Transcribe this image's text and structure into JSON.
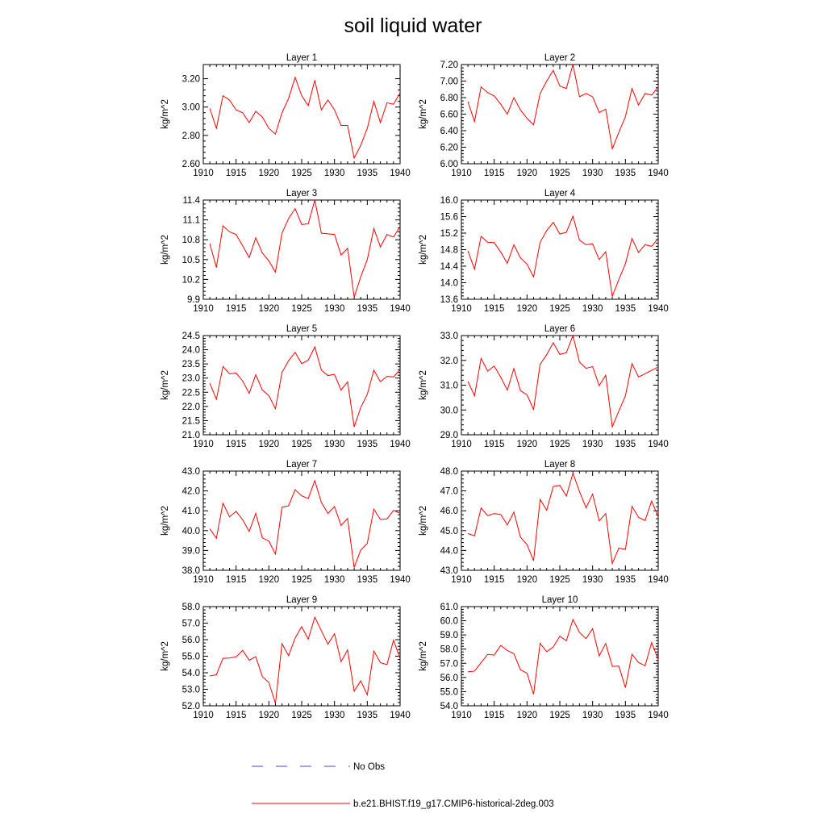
{
  "title": "soil liquid water",
  "legend": [
    {
      "label": "No Obs",
      "color": "#4444cc",
      "style": "dashed"
    },
    {
      "label": "b.e21.BHIST.f19_g17.CMIP6-historical-2deg.003",
      "color": "#ff0000",
      "style": "solid"
    }
  ],
  "chart_data": [
    {
      "type": "line",
      "title": "Layer 1",
      "ylabel": "kg/m^2",
      "xlim": [
        1910,
        1940
      ],
      "ylim": [
        2.6,
        3.3
      ],
      "xticks": [
        "1910",
        "1915",
        "1920",
        "1925",
        "1930",
        "1935",
        "1940"
      ],
      "yticks": [
        "2.60",
        "2.80",
        "3.00",
        "3.20"
      ],
      "ytick_values": [
        2.6,
        2.8,
        3.0,
        3.2
      ],
      "series": [
        {
          "color": "#ff0000",
          "x": [
            1911,
            1912,
            1913,
            1914,
            1915,
            1916,
            1917,
            1918,
            1919,
            1920,
            1921,
            1922,
            1923,
            1924,
            1925,
            1926,
            1927,
            1928,
            1929,
            1930,
            1931,
            1932,
            1933,
            1934,
            1935,
            1936,
            1937,
            1938,
            1939,
            1940
          ],
          "y": [
            2.99,
            2.85,
            3.08,
            3.05,
            2.98,
            2.96,
            2.89,
            2.97,
            2.93,
            2.85,
            2.81,
            2.96,
            3.06,
            3.21,
            3.08,
            3.01,
            3.19,
            2.98,
            3.05,
            2.98,
            2.87,
            2.87,
            2.64,
            2.73,
            2.85,
            3.04,
            2.89,
            3.03,
            3.02,
            3.1
          ]
        }
      ]
    },
    {
      "type": "line",
      "title": "Layer 2",
      "ylabel": "kg/m^2",
      "xlim": [
        1910,
        1940
      ],
      "ylim": [
        6.0,
        7.2
      ],
      "xticks": [
        "1910",
        "1915",
        "1920",
        "1925",
        "1930",
        "1935",
        "1940"
      ],
      "yticks": [
        "6.00",
        "6.20",
        "6.40",
        "6.60",
        "6.80",
        "7.00",
        "7.20"
      ],
      "ytick_values": [
        6.0,
        6.2,
        6.4,
        6.6,
        6.8,
        7.0,
        7.2
      ],
      "series": [
        {
          "color": "#ff0000",
          "x": [
            1911,
            1912,
            1913,
            1914,
            1915,
            1916,
            1917,
            1918,
            1919,
            1920,
            1921,
            1922,
            1923,
            1924,
            1925,
            1926,
            1927,
            1928,
            1929,
            1930,
            1931,
            1932,
            1933,
            1934,
            1935,
            1936,
            1937,
            1938,
            1939,
            1940
          ],
          "y": [
            6.75,
            6.51,
            6.93,
            6.86,
            6.82,
            6.72,
            6.6,
            6.8,
            6.65,
            6.55,
            6.47,
            6.85,
            7.0,
            7.13,
            6.94,
            6.91,
            7.2,
            6.81,
            6.85,
            6.81,
            6.62,
            6.66,
            6.18,
            6.38,
            6.57,
            6.91,
            6.71,
            6.85,
            6.83,
            6.93
          ]
        }
      ]
    },
    {
      "type": "line",
      "title": "Layer 3",
      "ylabel": "kg/m^2",
      "xlim": [
        1910,
        1940
      ],
      "ylim": [
        9.9,
        11.4
      ],
      "xticks": [
        "1910",
        "1915",
        "1920",
        "1925",
        "1930",
        "1935",
        "1940"
      ],
      "yticks": [
        "9.9",
        "10.2",
        "10.5",
        "10.8",
        "11.1",
        "11.4"
      ],
      "ytick_values": [
        9.9,
        10.2,
        10.5,
        10.8,
        11.1,
        11.4
      ],
      "series": [
        {
          "color": "#ff0000",
          "x": [
            1911,
            1912,
            1913,
            1914,
            1915,
            1916,
            1917,
            1918,
            1919,
            1920,
            1921,
            1922,
            1923,
            1924,
            1925,
            1926,
            1927,
            1928,
            1929,
            1930,
            1931,
            1932,
            1933,
            1934,
            1935,
            1936,
            1937,
            1938,
            1939,
            1940
          ],
          "y": [
            10.74,
            10.38,
            11.01,
            10.92,
            10.88,
            10.71,
            10.53,
            10.83,
            10.6,
            10.48,
            10.31,
            10.9,
            11.12,
            11.27,
            11.03,
            11.04,
            11.4,
            10.9,
            10.89,
            10.88,
            10.57,
            10.67,
            9.93,
            10.24,
            10.5,
            10.97,
            10.69,
            10.88,
            10.84,
            11.0
          ]
        }
      ]
    },
    {
      "type": "line",
      "title": "Layer 4",
      "ylabel": "kg/m^2",
      "xlim": [
        1910,
        1940
      ],
      "ylim": [
        13.6,
        16.0
      ],
      "xticks": [
        "1910",
        "1915",
        "1920",
        "1925",
        "1930",
        "1935",
        "1940"
      ],
      "yticks": [
        "13.6",
        "14.0",
        "14.4",
        "14.8",
        "15.2",
        "15.6",
        "16.0"
      ],
      "ytick_values": [
        13.6,
        14.0,
        14.4,
        14.8,
        15.2,
        15.6,
        16.0
      ],
      "series": [
        {
          "color": "#ff0000",
          "x": [
            1911,
            1912,
            1913,
            1914,
            1915,
            1916,
            1917,
            1918,
            1919,
            1920,
            1921,
            1922,
            1923,
            1924,
            1925,
            1926,
            1927,
            1928,
            1929,
            1930,
            1931,
            1932,
            1933,
            1934,
            1935,
            1936,
            1937,
            1938,
            1939,
            1940
          ],
          "y": [
            14.77,
            14.33,
            15.12,
            14.98,
            14.97,
            14.74,
            14.47,
            14.92,
            14.6,
            14.45,
            14.14,
            14.98,
            15.26,
            15.46,
            15.18,
            15.22,
            15.61,
            15.03,
            14.92,
            14.94,
            14.56,
            14.75,
            13.67,
            14.08,
            14.46,
            15.07,
            14.73,
            14.92,
            14.88,
            15.08
          ]
        }
      ]
    },
    {
      "type": "line",
      "title": "Layer 5",
      "ylabel": "kg/m^2",
      "xlim": [
        1910,
        1940
      ],
      "ylim": [
        21.0,
        24.5
      ],
      "xticks": [
        "1910",
        "1915",
        "1920",
        "1925",
        "1930",
        "1935",
        "1940"
      ],
      "yticks": [
        "21.0",
        "21.5",
        "22.0",
        "22.5",
        "23.0",
        "23.5",
        "24.0",
        "24.5"
      ],
      "ytick_values": [
        21.0,
        21.5,
        22.0,
        22.5,
        23.0,
        23.5,
        24.0,
        24.5
      ],
      "series": [
        {
          "color": "#ff0000",
          "x": [
            1911,
            1912,
            1913,
            1914,
            1915,
            1916,
            1917,
            1918,
            1919,
            1920,
            1921,
            1922,
            1923,
            1924,
            1925,
            1926,
            1927,
            1928,
            1929,
            1930,
            1931,
            1932,
            1933,
            1934,
            1935,
            1936,
            1937,
            1938,
            1939,
            1940
          ],
          "y": [
            22.82,
            22.25,
            23.41,
            23.15,
            23.18,
            22.9,
            22.46,
            23.12,
            22.58,
            22.38,
            21.92,
            23.2,
            23.61,
            23.91,
            23.51,
            23.63,
            24.1,
            23.28,
            23.09,
            23.13,
            22.58,
            22.87,
            21.28,
            21.96,
            22.43,
            23.28,
            22.87,
            23.06,
            23.04,
            23.3
          ]
        }
      ]
    },
    {
      "type": "line",
      "title": "Layer 6",
      "ylabel": "kg/m^2",
      "xlim": [
        1910,
        1940
      ],
      "ylim": [
        29.0,
        33.0
      ],
      "xticks": [
        "1910",
        "1915",
        "1920",
        "1925",
        "1930",
        "1935",
        "1940"
      ],
      "yticks": [
        "29.0",
        "30.0",
        "31.0",
        "32.0",
        "33.0"
      ],
      "ytick_values": [
        29.0,
        30.0,
        31.0,
        32.0,
        33.0
      ],
      "series": [
        {
          "color": "#ff0000",
          "x": [
            1911,
            1912,
            1913,
            1914,
            1915,
            1916,
            1917,
            1918,
            1919,
            1920,
            1921,
            1922,
            1923,
            1924,
            1925,
            1926,
            1927,
            1928,
            1929,
            1930,
            1931,
            1932,
            1933,
            1934,
            1935,
            1936,
            1937,
            1938,
            1939,
            1940
          ],
          "y": [
            31.15,
            30.57,
            32.08,
            31.57,
            31.77,
            31.32,
            30.8,
            31.67,
            30.78,
            30.61,
            30.02,
            31.84,
            32.23,
            32.71,
            32.24,
            32.31,
            33.0,
            31.93,
            31.68,
            31.75,
            30.98,
            31.4,
            29.32,
            29.96,
            30.57,
            31.87,
            31.33,
            31.46,
            31.6,
            31.73
          ]
        }
      ]
    },
    {
      "type": "line",
      "title": "Layer 7",
      "ylabel": "kg/m^2",
      "xlim": [
        1910,
        1940
      ],
      "ylim": [
        38.0,
        43.0
      ],
      "xticks": [
        "1910",
        "1915",
        "1920",
        "1925",
        "1930",
        "1935",
        "1940"
      ],
      "yticks": [
        "38.0",
        "39.0",
        "40.0",
        "41.0",
        "42.0",
        "43.0"
      ],
      "ytick_values": [
        38.0,
        39.0,
        40.0,
        41.0,
        42.0,
        43.0
      ],
      "series": [
        {
          "color": "#ff0000",
          "x": [
            1911,
            1912,
            1913,
            1914,
            1915,
            1916,
            1917,
            1918,
            1919,
            1920,
            1921,
            1922,
            1923,
            1924,
            1925,
            1926,
            1927,
            1928,
            1929,
            1930,
            1931,
            1932,
            1933,
            1934,
            1935,
            1936,
            1937,
            1938,
            1939,
            1940
          ],
          "y": [
            40.09,
            39.61,
            41.38,
            40.7,
            40.97,
            40.55,
            39.96,
            40.87,
            39.64,
            39.47,
            38.82,
            41.18,
            41.25,
            42.06,
            41.75,
            41.62,
            42.52,
            41.42,
            40.87,
            41.21,
            40.26,
            40.61,
            38.14,
            39.02,
            39.36,
            41.08,
            40.56,
            40.59,
            41.02,
            40.87
          ]
        }
      ]
    },
    {
      "type": "line",
      "title": "Layer 8",
      "ylabel": "kg/m^2",
      "xlim": [
        1910,
        1940
      ],
      "ylim": [
        43.0,
        48.0
      ],
      "xticks": [
        "1910",
        "1915",
        "1920",
        "1925",
        "1930",
        "1935",
        "1940"
      ],
      "yticks": [
        "43.0",
        "44.0",
        "45.0",
        "46.0",
        "47.0",
        "48.0"
      ],
      "ytick_values": [
        43.0,
        44.0,
        45.0,
        46.0,
        47.0,
        48.0
      ],
      "series": [
        {
          "color": "#ff0000",
          "x": [
            1911,
            1912,
            1913,
            1914,
            1915,
            1916,
            1917,
            1918,
            1919,
            1920,
            1921,
            1922,
            1923,
            1924,
            1925,
            1926,
            1927,
            1928,
            1929,
            1930,
            1931,
            1932,
            1933,
            1934,
            1935,
            1936,
            1937,
            1938,
            1939,
            1940
          ],
          "y": [
            44.85,
            44.74,
            46.14,
            45.75,
            45.86,
            45.81,
            45.29,
            45.93,
            44.67,
            44.3,
            43.48,
            46.57,
            46.03,
            47.22,
            47.28,
            46.74,
            47.89,
            46.97,
            46.15,
            46.84,
            45.49,
            45.86,
            43.34,
            44.12,
            44.05,
            46.22,
            45.67,
            45.51,
            46.49,
            45.69
          ]
        }
      ]
    },
    {
      "type": "line",
      "title": "Layer 9",
      "ylabel": "kg/m^2",
      "xlim": [
        1910,
        1940
      ],
      "ylim": [
        52.0,
        58.0
      ],
      "xticks": [
        "1910",
        "1915",
        "1920",
        "1925",
        "1930",
        "1935",
        "1940"
      ],
      "yticks": [
        "52.0",
        "53.0",
        "54.0",
        "55.0",
        "56.0",
        "57.0",
        "58.0"
      ],
      "ytick_values": [
        52.0,
        53.0,
        54.0,
        55.0,
        56.0,
        57.0,
        58.0
      ],
      "series": [
        {
          "color": "#ff0000",
          "x": [
            1911,
            1912,
            1913,
            1914,
            1915,
            1916,
            1917,
            1918,
            1919,
            1920,
            1921,
            1922,
            1923,
            1924,
            1925,
            1926,
            1927,
            1928,
            1929,
            1930,
            1931,
            1932,
            1933,
            1934,
            1935,
            1936,
            1937,
            1938,
            1939,
            1940
          ],
          "y": [
            53.81,
            53.88,
            54.87,
            54.89,
            54.96,
            55.35,
            54.76,
            54.97,
            53.77,
            53.41,
            52.14,
            55.76,
            55.03,
            56.1,
            56.79,
            56.03,
            57.36,
            56.54,
            55.73,
            56.36,
            54.67,
            55.38,
            52.88,
            53.51,
            52.66,
            55.31,
            54.61,
            54.49,
            55.97,
            54.85
          ]
        }
      ]
    },
    {
      "type": "line",
      "title": "Layer 10",
      "ylabel": "kg/m^2",
      "xlim": [
        1910,
        1940
      ],
      "ylim": [
        54.0,
        61.0
      ],
      "xticks": [
        "1910",
        "1915",
        "1920",
        "1925",
        "1930",
        "1935",
        "1940"
      ],
      "yticks": [
        "54.0",
        "55.0",
        "56.0",
        "57.0",
        "58.0",
        "59.0",
        "60.0",
        "61.0"
      ],
      "ytick_values": [
        54.0,
        55.0,
        56.0,
        57.0,
        58.0,
        59.0,
        60.0,
        61.0
      ],
      "series": [
        {
          "color": "#ff0000",
          "x": [
            1911,
            1912,
            1913,
            1914,
            1915,
            1916,
            1917,
            1918,
            1919,
            1920,
            1921,
            1922,
            1923,
            1924,
            1925,
            1926,
            1927,
            1928,
            1929,
            1930,
            1931,
            1932,
            1933,
            1934,
            1935,
            1936,
            1937,
            1938,
            1939,
            1940
          ],
          "y": [
            56.4,
            56.45,
            57.05,
            57.63,
            57.58,
            58.26,
            57.9,
            57.68,
            56.54,
            56.3,
            54.81,
            58.41,
            57.82,
            58.15,
            58.91,
            58.59,
            60.09,
            59.18,
            58.74,
            59.44,
            57.52,
            58.4,
            56.78,
            56.8,
            55.28,
            57.64,
            57.06,
            56.82,
            58.46,
            57.26
          ]
        }
      ]
    }
  ]
}
